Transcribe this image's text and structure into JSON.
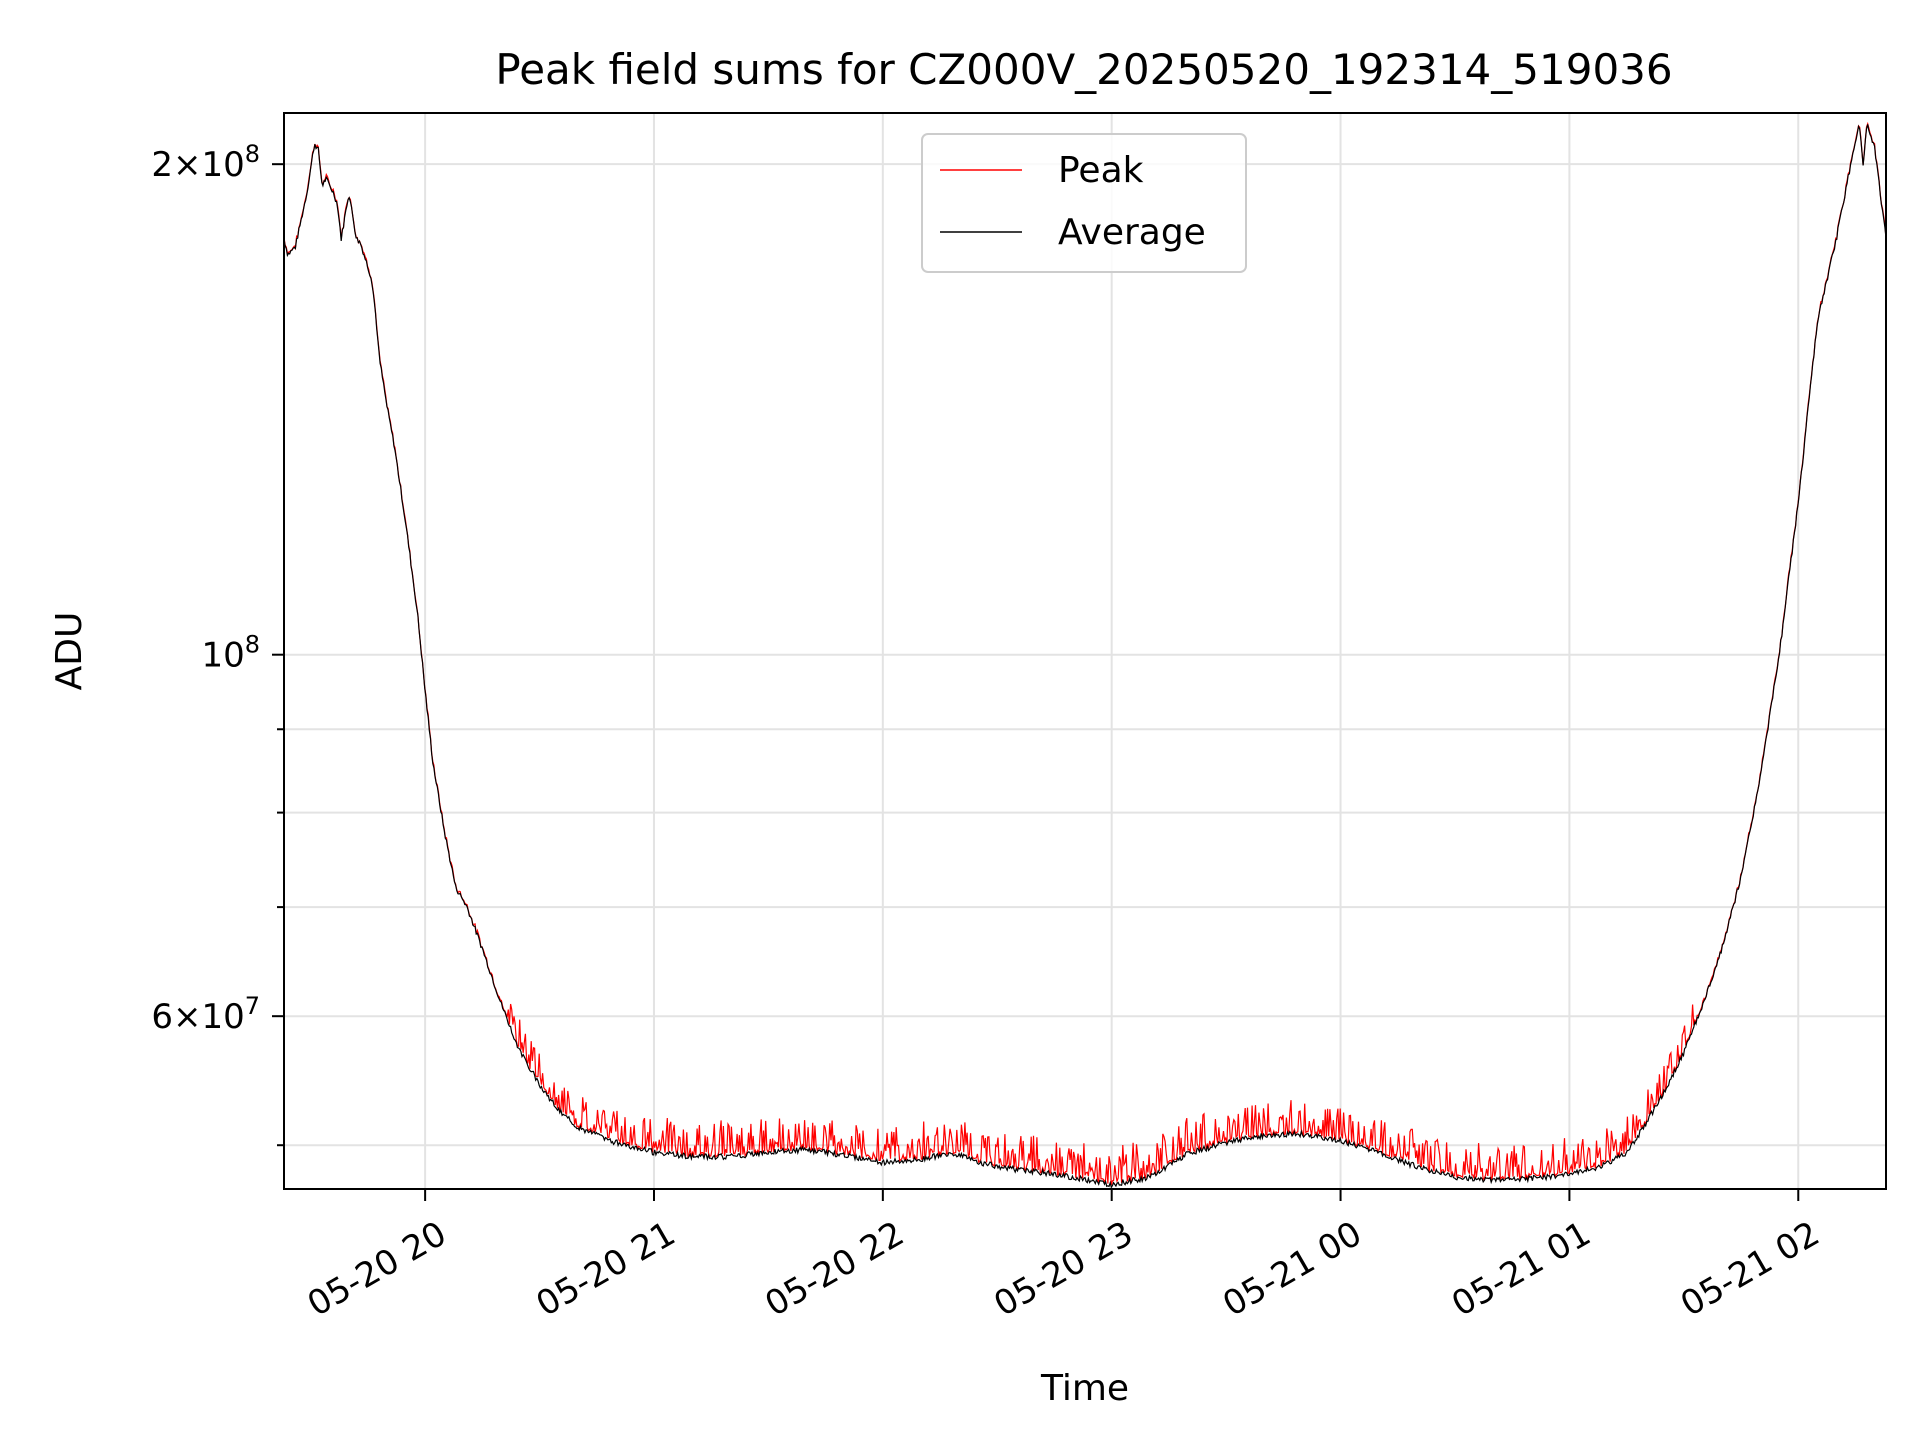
{
  "chart_data": {
    "type": "line",
    "title": "Peak field sums for CZ000V_20250520_192314_519036",
    "xlabel": "Time",
    "ylabel": "ADU",
    "yscale": "log",
    "grid": true,
    "legend_position": "upper center",
    "x_unit": "timestamp (YYYY-MM-DD HH:MM)",
    "xlim": [
      "2025-05-20 19:23",
      "2025-05-21 02:23"
    ],
    "ylim": [
      47000000,
      215000000
    ],
    "x_ticks": [
      {
        "value": "2025-05-20 20:00",
        "label": "05-20 20"
      },
      {
        "value": "2025-05-20 21:00",
        "label": "05-20 21"
      },
      {
        "value": "2025-05-20 22:00",
        "label": "05-20 22"
      },
      {
        "value": "2025-05-20 23:00",
        "label": "05-20 23"
      },
      {
        "value": "2025-05-21 00:00",
        "label": "05-21 00"
      },
      {
        "value": "2025-05-21 01:00",
        "label": "05-21 01"
      },
      {
        "value": "2025-05-21 02:00",
        "label": "05-21 02"
      }
    ],
    "y_ticks": [
      {
        "value": 200000000,
        "base": "2",
        "exp": "8"
      },
      {
        "value": 100000000,
        "base": "",
        "exp": "8"
      },
      {
        "value": 60000000,
        "base": "6",
        "exp": "7"
      }
    ],
    "y_minor_ticks": [
      50000000,
      70000000,
      80000000,
      90000000
    ],
    "series": [
      {
        "name": "Peak",
        "color": "#ff0000",
        "line_width": 1.2
      },
      {
        "name": "Average",
        "color": "#000000",
        "line_width": 1.2
      }
    ],
    "average_x": [
      "2025-05-20 19:23",
      "2025-05-20 19:24",
      "2025-05-20 19:26",
      "2025-05-20 19:29",
      "2025-05-20 19:31",
      "2025-05-20 19:32",
      "2025-05-20 19:33",
      "2025-05-20 19:34",
      "2025-05-20 19:36",
      "2025-05-20 19:37",
      "2025-05-20 19:38",
      "2025-05-20 19:40",
      "2025-05-20 19:41",
      "2025-05-20 19:42",
      "2025-05-20 19:43",
      "2025-05-20 19:46",
      "2025-05-20 19:47",
      "2025-05-20 19:48",
      "2025-05-20 19:50",
      "2025-05-20 19:52",
      "2025-05-20 19:55",
      "2025-05-20 19:58",
      "2025-05-20 20:00",
      "2025-05-20 20:02",
      "2025-05-20 20:05",
      "2025-05-20 20:08",
      "2025-05-20 20:11",
      "2025-05-20 20:15",
      "2025-05-20 20:20",
      "2025-05-20 20:25",
      "2025-05-20 20:30",
      "2025-05-20 20:35",
      "2025-05-20 20:40",
      "2025-05-20 20:45",
      "2025-05-20 20:50",
      "2025-05-20 21:00",
      "2025-05-20 21:10",
      "2025-05-20 21:20",
      "2025-05-20 21:30",
      "2025-05-20 21:40",
      "2025-05-20 21:50",
      "2025-05-20 22:00",
      "2025-05-20 22:10",
      "2025-05-20 22:18",
      "2025-05-20 22:25",
      "2025-05-20 22:35",
      "2025-05-20 22:45",
      "2025-05-20 23:00",
      "2025-05-20 23:10",
      "2025-05-20 23:20",
      "2025-05-20 23:30",
      "2025-05-20 23:40",
      "2025-05-20 23:50",
      "2025-05-21 00:00",
      "2025-05-21 00:10",
      "2025-05-21 00:20",
      "2025-05-21 00:30",
      "2025-05-21 00:40",
      "2025-05-21 00:50",
      "2025-05-21 01:00",
      "2025-05-21 01:08",
      "2025-05-21 01:15",
      "2025-05-21 01:20",
      "2025-05-21 01:25",
      "2025-05-21 01:30",
      "2025-05-21 01:35",
      "2025-05-21 01:40",
      "2025-05-21 01:45",
      "2025-05-21 01:50",
      "2025-05-21 01:55",
      "2025-05-21 02:00",
      "2025-05-21 02:05",
      "2025-05-21 02:10",
      "2025-05-21 02:13",
      "2025-05-21 02:15",
      "2025-05-21 02:16",
      "2025-05-21 02:17",
      "2025-05-21 02:18",
      "2025-05-21 02:20",
      "2025-05-21 02:23"
    ],
    "average_y": [
      180000000,
      176000000,
      178000000,
      192000000,
      206000000,
      204000000,
      194000000,
      196000000,
      192000000,
      189000000,
      180000000,
      192000000,
      186000000,
      180000000,
      179000000,
      170000000,
      162000000,
      152000000,
      142000000,
      134000000,
      120000000,
      106000000,
      95000000,
      86000000,
      78000000,
      72000000,
      70000000,
      66000000,
      61000000,
      57000000,
      54500000,
      52500000,
      51300000,
      50700000,
      50200000,
      49500000,
      49200000,
      49200000,
      49500000,
      49700000,
      49300000,
      48800000,
      49000000,
      49500000,
      48800000,
      48300000,
      48000000,
      47300000,
      47800000,
      49400000,
      50200000,
      50700000,
      50800000,
      50300000,
      49500000,
      48500000,
      47800000,
      47600000,
      47700000,
      48000000,
      48500000,
      49500000,
      51500000,
      54000000,
      57000000,
      61000000,
      66000000,
      73000000,
      84000000,
      100000000,
      124000000,
      160000000,
      180000000,
      196000000,
      206000000,
      212000000,
      200000000,
      212000000,
      205000000,
      180000000
    ],
    "peak_offset_band": [
      300000,
      2500000
    ]
  }
}
